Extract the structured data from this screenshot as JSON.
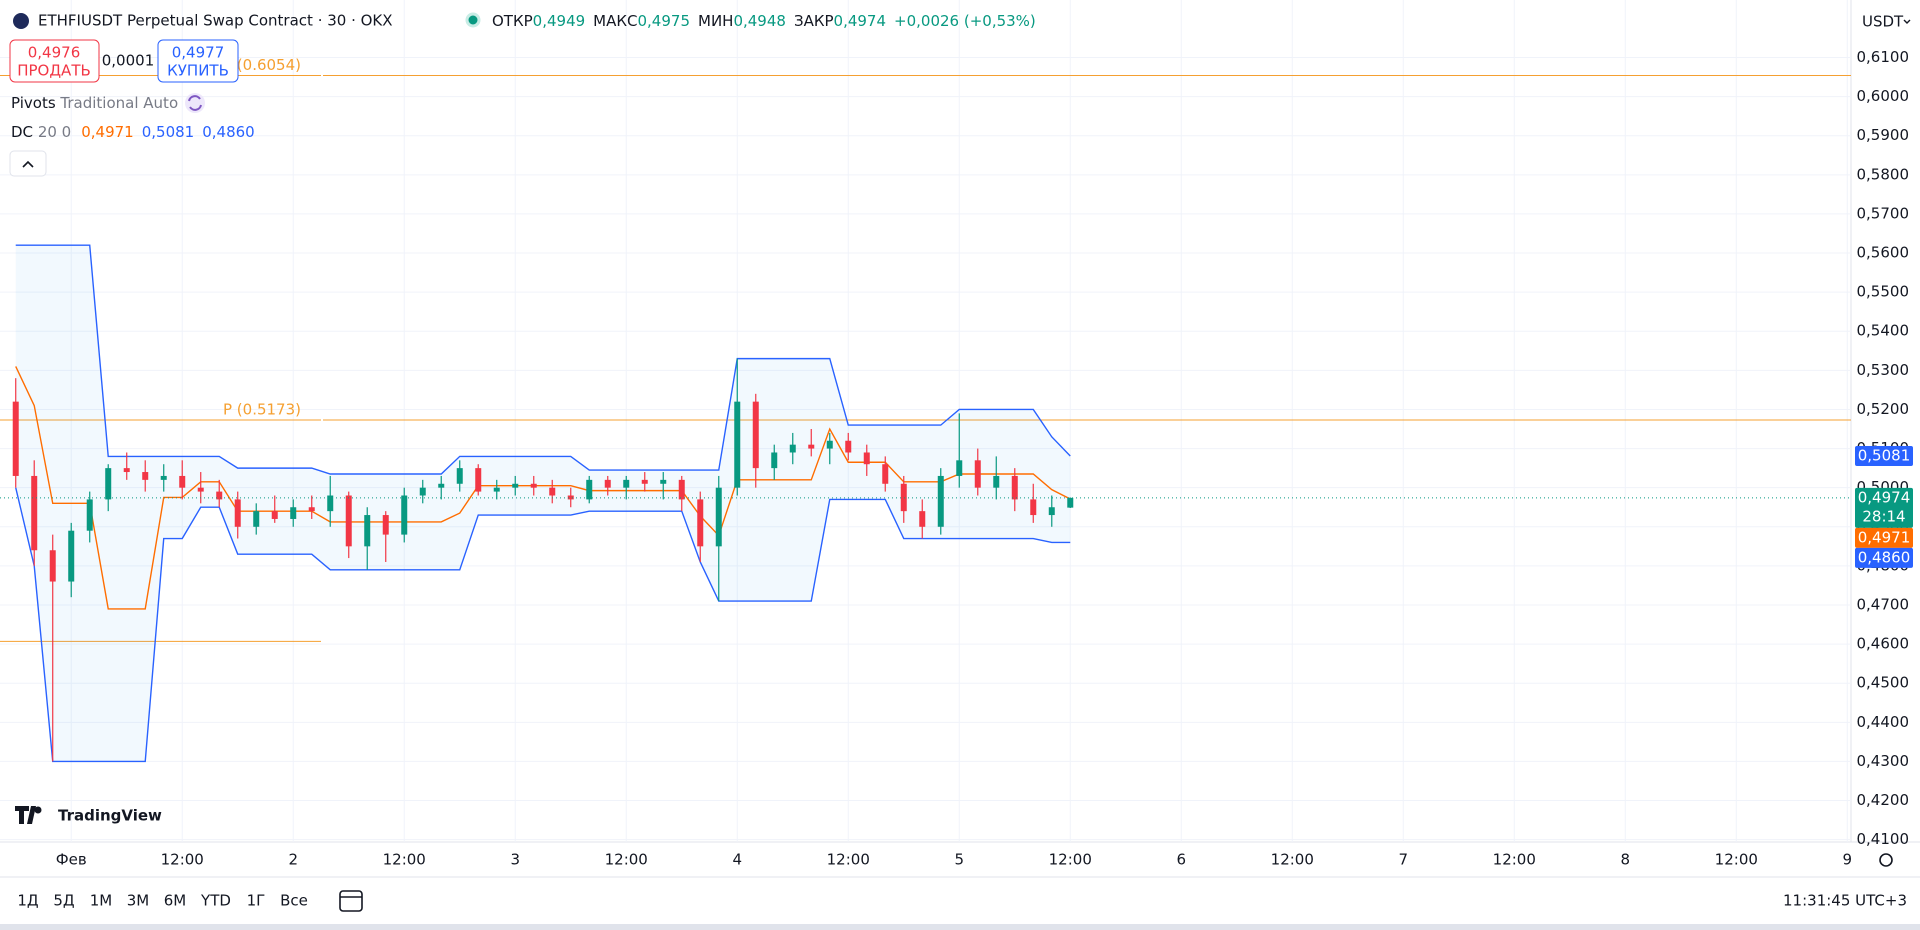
{
  "header": {
    "title": "ETHFIUSDT Perpetual Swap Contract · 30 · OKX",
    "ohlc": [
      {
        "label": "ОТКР",
        "value": "0,4949"
      },
      {
        "label": "МАКС",
        "value": "0,4975"
      },
      {
        "label": "МИН",
        "value": "0,4948"
      },
      {
        "label": "ЗАКР",
        "value": "0,4974"
      }
    ],
    "change": "+0,0026 (+0,53%)",
    "currency": "USDT"
  },
  "trade": {
    "sell_price": "0,4976",
    "sell_label": "ПРОДАТЬ",
    "spread": "0,0001",
    "buy_price": "0,4977",
    "buy_label": "КУПИТЬ"
  },
  "legend": {
    "pivots_name": "Pivots",
    "pivots_params": "Traditional Auto",
    "dc_name": "DC",
    "dc_params": "20 0",
    "dc_basis": "0,4971",
    "dc_upper": "0,5081",
    "dc_lower": "0,4860"
  },
  "logo": "TradingView",
  "chart_data": {
    "type": "candlestick",
    "x": [
      -6,
      -4,
      -2,
      0,
      2,
      4,
      6,
      8,
      10,
      12,
      14,
      16,
      18,
      20,
      22,
      24,
      26,
      28,
      30,
      32,
      34,
      36,
      38,
      40,
      42,
      44,
      46,
      48,
      50,
      52,
      54,
      56,
      58,
      60,
      62,
      64,
      66,
      68,
      70,
      72,
      74,
      76,
      78,
      80,
      82,
      84,
      86,
      88,
      90,
      92,
      94,
      96,
      98,
      100,
      102,
      104,
      106,
      108
    ],
    "open": [
      0.522,
      0.503,
      0.484,
      0.476,
      0.489,
      0.497,
      0.505,
      0.504,
      0.502,
      0.503,
      0.5,
      0.499,
      0.497,
      0.49,
      0.494,
      0.492,
      0.495,
      0.494,
      0.498,
      0.485,
      0.493,
      0.488,
      0.498,
      0.5,
      0.501,
      0.505,
      0.499,
      0.5,
      0.501,
      0.5,
      0.498,
      0.497,
      0.502,
      0.5,
      0.502,
      0.501,
      0.502,
      0.497,
      0.485,
      0.5,
      0.522,
      0.505,
      0.509,
      0.511,
      0.51,
      0.512,
      0.509,
      0.506,
      0.501,
      0.494,
      0.49,
      0.503,
      0.507,
      0.5,
      0.503,
      0.497,
      0.493,
      0.4949
    ],
    "high": [
      0.528,
      0.507,
      0.488,
      0.491,
      0.499,
      0.506,
      0.509,
      0.507,
      0.506,
      0.507,
      0.504,
      0.502,
      0.499,
      0.496,
      0.498,
      0.497,
      0.498,
      0.503,
      0.499,
      0.495,
      0.494,
      0.5,
      0.502,
      0.503,
      0.507,
      0.506,
      0.502,
      0.503,
      0.503,
      0.502,
      0.5,
      0.503,
      0.503,
      0.503,
      0.504,
      0.504,
      0.503,
      0.499,
      0.503,
      0.533,
      0.524,
      0.511,
      0.514,
      0.515,
      0.514,
      0.514,
      0.511,
      0.508,
      0.503,
      0.497,
      0.505,
      0.519,
      0.51,
      0.508,
      0.505,
      0.501,
      0.498,
      0.4975
    ],
    "low": [
      0.5,
      0.48,
      0.43,
      0.472,
      0.486,
      0.494,
      0.502,
      0.499,
      0.499,
      0.497,
      0.496,
      0.495,
      0.487,
      0.488,
      0.491,
      0.49,
      0.492,
      0.49,
      0.482,
      0.479,
      0.481,
      0.486,
      0.496,
      0.497,
      0.499,
      0.498,
      0.497,
      0.498,
      0.498,
      0.496,
      0.495,
      0.496,
      0.498,
      0.497,
      0.499,
      0.497,
      0.494,
      0.481,
      0.471,
      0.498,
      0.5,
      0.502,
      0.506,
      0.508,
      0.506,
      0.507,
      0.503,
      0.499,
      0.491,
      0.487,
      0.488,
      0.5,
      0.498,
      0.497,
      0.494,
      0.491,
      0.49,
      0.4948
    ],
    "close": [
      0.503,
      0.484,
      0.476,
      0.489,
      0.497,
      0.505,
      0.504,
      0.502,
      0.503,
      0.5,
      0.499,
      0.497,
      0.49,
      0.494,
      0.492,
      0.495,
      0.494,
      0.498,
      0.485,
      0.493,
      0.488,
      0.498,
      0.5,
      0.501,
      0.505,
      0.499,
      0.5,
      0.501,
      0.5,
      0.498,
      0.497,
      0.502,
      0.5,
      0.502,
      0.501,
      0.502,
      0.497,
      0.485,
      0.5,
      0.522,
      0.505,
      0.509,
      0.511,
      0.51,
      0.512,
      0.509,
      0.506,
      0.501,
      0.494,
      0.49,
      0.503,
      0.507,
      0.5,
      0.503,
      0.497,
      0.493,
      0.495,
      0.4974
    ],
    "up_color": "#089981",
    "down_color": "#f23645",
    "donchian": {
      "upper": [
        0.562,
        0.562,
        0.562,
        0.562,
        0.562,
        0.508,
        0.508,
        0.508,
        0.508,
        0.508,
        0.508,
        0.508,
        0.505,
        0.505,
        0.505,
        0.505,
        0.505,
        0.5035,
        0.5035,
        0.5035,
        0.5035,
        0.5035,
        0.5035,
        0.5035,
        0.508,
        0.508,
        0.508,
        0.508,
        0.508,
        0.508,
        0.508,
        0.5045,
        0.5045,
        0.5045,
        0.5045,
        0.5045,
        0.5045,
        0.5045,
        0.5045,
        0.533,
        0.533,
        0.533,
        0.533,
        0.533,
        0.533,
        0.516,
        0.516,
        0.516,
        0.516,
        0.516,
        0.516,
        0.52,
        0.52,
        0.52,
        0.52,
        0.52,
        0.513,
        0.5081
      ],
      "lower": [
        0.5,
        0.48,
        0.43,
        0.43,
        0.43,
        0.43,
        0.43,
        0.43,
        0.487,
        0.487,
        0.495,
        0.495,
        0.483,
        0.483,
        0.483,
        0.483,
        0.483,
        0.479,
        0.479,
        0.479,
        0.479,
        0.479,
        0.479,
        0.479,
        0.479,
        0.493,
        0.493,
        0.493,
        0.493,
        0.493,
        0.493,
        0.494,
        0.494,
        0.494,
        0.494,
        0.494,
        0.494,
        0.481,
        0.471,
        0.471,
        0.471,
        0.471,
        0.471,
        0.471,
        0.497,
        0.497,
        0.497,
        0.497,
        0.487,
        0.487,
        0.487,
        0.487,
        0.487,
        0.487,
        0.487,
        0.487,
        0.486,
        0.486
      ],
      "basis": [
        0.531,
        0.521,
        0.496,
        0.496,
        0.496,
        0.469,
        0.469,
        0.469,
        0.4975,
        0.4975,
        0.5015,
        0.5015,
        0.494,
        0.494,
        0.494,
        0.494,
        0.494,
        0.49125,
        0.49125,
        0.49125,
        0.49125,
        0.49125,
        0.49125,
        0.49125,
        0.4935,
        0.5005,
        0.5005,
        0.5005,
        0.5005,
        0.5005,
        0.5005,
        0.49925,
        0.49925,
        0.49925,
        0.49925,
        0.49925,
        0.49925,
        0.49275,
        0.48775,
        0.502,
        0.502,
        0.502,
        0.502,
        0.502,
        0.515,
        0.5065,
        0.5065,
        0.5065,
        0.5015,
        0.5015,
        0.5015,
        0.5035,
        0.5035,
        0.5035,
        0.5035,
        0.5035,
        0.4995,
        0.4971
      ],
      "band_color": "#2962ff",
      "basis_color": "#ff6d00"
    },
    "pivots": [
      {
        "value": 0.6054,
        "label": "(0.6054)",
        "extend": true
      },
      {
        "value": 0.5173,
        "label": "P (0.5173)",
        "extend": true
      },
      {
        "value": 0.4607,
        "extend": false
      }
    ],
    "pivot_color": "#f5a031",
    "price_labels": [
      {
        "value": 0.5081,
        "label": "0,5081",
        "color": "#2962ff"
      },
      {
        "value": 0.4974,
        "label": "0,4974",
        "sublabel": "28:14",
        "color": "#089981"
      },
      {
        "value": 0.4971,
        "label": "0,4971",
        "color": "#ff6d00"
      },
      {
        "value": 0.486,
        "label": "0,4860",
        "color": "#2962ff"
      }
    ],
    "xlim": [
      -7.7,
      192.4
    ],
    "xticks": [
      {
        "value": 0,
        "label": "Фев"
      },
      {
        "value": 12,
        "label": "12:00"
      },
      {
        "value": 24,
        "label": "2"
      },
      {
        "value": 36,
        "label": "12:00"
      },
      {
        "value": 48,
        "label": "3"
      },
      {
        "value": 60,
        "label": "12:00"
      },
      {
        "value": 72,
        "label": "4"
      },
      {
        "value": 84,
        "label": "12:00"
      },
      {
        "value": 96,
        "label": "5"
      },
      {
        "value": 108,
        "label": "12:00"
      },
      {
        "value": 120,
        "label": "6"
      },
      {
        "value": 132,
        "label": "12:00"
      },
      {
        "value": 144,
        "label": "7"
      },
      {
        "value": 156,
        "label": "12:00"
      },
      {
        "value": 168,
        "label": "8"
      },
      {
        "value": 180,
        "label": "12:00"
      },
      {
        "value": 192,
        "label": "9"
      }
    ],
    "ylim": [
      0.4094,
      0.6247
    ],
    "yticks": [
      {
        "value": 0.41,
        "label": "0,4100"
      },
      {
        "value": 0.42,
        "label": "0,4200"
      },
      {
        "value": 0.43,
        "label": "0,4300"
      },
      {
        "value": 0.44,
        "label": "0,4400"
      },
      {
        "value": 0.45,
        "label": "0,4500"
      },
      {
        "value": 0.46,
        "label": "0,4600"
      },
      {
        "value": 0.47,
        "label": "0,4700"
      },
      {
        "value": 0.48,
        "label": "0,4800"
      },
      {
        "value": 0.49,
        "label": "0,4900"
      },
      {
        "value": 0.5,
        "label": "0,5000"
      },
      {
        "value": 0.51,
        "label": "0,5100"
      },
      {
        "value": 0.52,
        "label": "0,5200"
      },
      {
        "value": 0.53,
        "label": "0,5300"
      },
      {
        "value": 0.54,
        "label": "0,5400"
      },
      {
        "value": 0.55,
        "label": "0,5500"
      },
      {
        "value": 0.56,
        "label": "0,5600"
      },
      {
        "value": 0.57,
        "label": "0,5700"
      },
      {
        "value": 0.58,
        "label": "0,5800"
      },
      {
        "value": 0.59,
        "label": "0,5900"
      },
      {
        "value": 0.6,
        "label": "0,6000"
      },
      {
        "value": 0.61,
        "label": "0,6100"
      }
    ],
    "grid": true
  },
  "footer": {
    "ranges": [
      "1Д",
      "5Д",
      "1М",
      "3М",
      "6М",
      "YTD",
      "1Г",
      "Все"
    ],
    "clock": "11:31:45 UTC+3"
  }
}
